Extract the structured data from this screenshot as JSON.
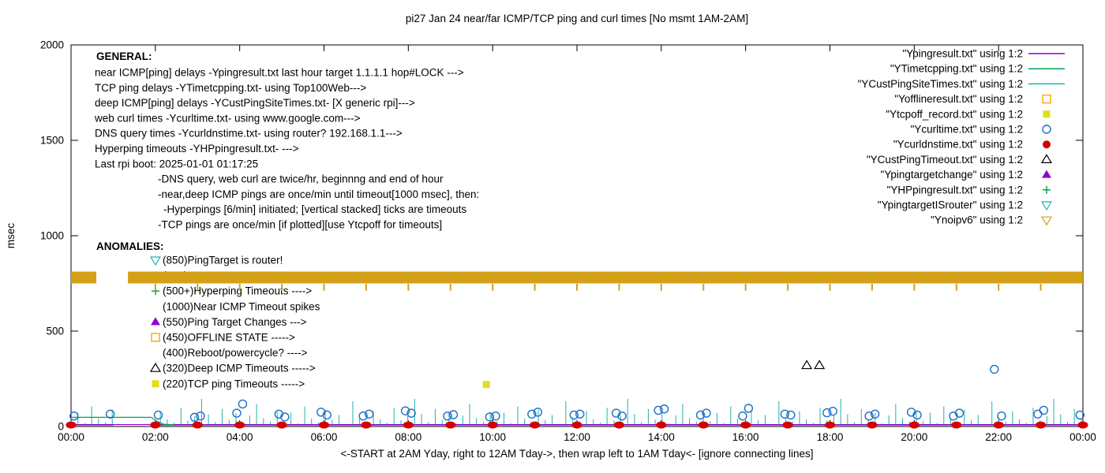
{
  "chart_data": {
    "type": "line",
    "title": "pi27 Jan 24  near/far ICMP/TCP ping and curl times [No msmt 1AM-2AM]",
    "ylabel": "msec",
    "xlabel": "<-START at 2AM Yday, right to 12AM Tday->, then wrap left to 1AM Tday<- [ignore connecting lines]",
    "x_ticks": [
      "00:00",
      "02:00",
      "04:00",
      "06:00",
      "08:00",
      "10:00",
      "12:00",
      "14:00",
      "16:00",
      "18:00",
      "20:00",
      "22:00",
      "00:00"
    ],
    "y_ticks": [
      0,
      500,
      1000,
      1500,
      2000
    ],
    "ylim": [
      0,
      2000
    ],
    "xlim_hours": [
      0,
      24
    ],
    "legend_position": "top-right",
    "grid": false,
    "legend": [
      {
        "label": "\"Ypingresult.txt\" using 1:2",
        "marker": "line",
        "color": "#9400D3"
      },
      {
        "label": "\"YTimetcpping.txt\" using 1:2",
        "marker": "line",
        "color": "#00A651"
      },
      {
        "label": "\"YCustPingSiteTimes.txt\" using 1:2",
        "marker": "line",
        "color": "#20B2AA"
      },
      {
        "label": "\"Yofflineresult.txt\" using 1:2",
        "marker": "square-open",
        "color": "#FFA500"
      },
      {
        "label": "\"Ytcpoff_record.txt\" using 1:2",
        "marker": "square-filled",
        "color": "#DFDF20"
      },
      {
        "label": "\"Ycurltime.txt\" using 1:2",
        "marker": "circle-open",
        "color": "#1E6FC8"
      },
      {
        "label": "\"Ycurldnstime.txt\" using 1:2",
        "marker": "circle-filled",
        "color": "#D40000"
      },
      {
        "label": "\"YCustPingTimeout.txt\" using 1:2",
        "marker": "triangle-open",
        "color": "#000000"
      },
      {
        "label": "\"Ypingtargetchange\" using 1:2",
        "marker": "triangle-filled",
        "color": "#9400D3"
      },
      {
        "label": "\"YHPpingresult.txt\" using 1:2",
        "marker": "plus",
        "color": "#00A651"
      },
      {
        "label": "\"YpingtargetISrouter\" using 1:2",
        "marker": "triangle-down-open",
        "color": "#20B2AA"
      },
      {
        "label": "\"Ynoipv6\" using 1:2",
        "marker": "triangle-down-open",
        "color": "#D4A017"
      }
    ],
    "general": {
      "header": "GENERAL:",
      "lines": [
        {
          "text": "near ICMP[ping] delays -Ypingresult.txt last hour target 1.1.1.1 hop#LOCK --->",
          "indent": 0
        },
        {
          "text": "TCP ping delays -YTimetcpping.txt- using Top100Web--->",
          "indent": 0
        },
        {
          "text": "deep ICMP[ping] delays -YCustPingSiteTimes.txt- [X generic rpi]--->",
          "indent": 0
        },
        {
          "text": "web curl times -Ycurltime.txt- using www.google.com--->",
          "indent": 0
        },
        {
          "text": "DNS query times -Ycurldnstime.txt- using router? 192.168.1.1--->",
          "indent": 0
        },
        {
          "text": "Hyperping timeouts -YHPpingresult.txt- --->",
          "indent": 0
        },
        {
          "text": "Last rpi boot: 2025-01-01 01:17:25",
          "indent": 0
        },
        {
          "text": "-DNS query, web curl are twice/hr, beginnng and end of hour",
          "indent": 1
        },
        {
          "text": "-near,deep ICMP pings are once/min until timeout[1000 msec], then:",
          "indent": 1
        },
        {
          "text": "-Hyperpings [6/min] initiated; [vertical stacked] ticks are timeouts",
          "indent": 2
        },
        {
          "text": "-TCP pings are once/min [if plotted][use Ytcpoff for timeouts]",
          "indent": 1
        }
      ]
    },
    "anomalies": {
      "header": "ANOMALIES:",
      "items": [
        {
          "text": "(850)PingTarget is router!",
          "marker": "triangle-down-open",
          "color": "#20B2AA"
        },
        {
          "text": "(725)",
          "marker": "triangle-down-open",
          "color": "#D4A017"
        },
        {
          "text": "(500+)Hyperping Timeouts ---->",
          "marker": "plus",
          "color": "#00A651"
        },
        {
          "text": "(1000)Near ICMP Timeout spikes",
          "marker": "",
          "color": ""
        },
        {
          "text": "(550)Ping Target Changes --->",
          "marker": "triangle-filled",
          "color": "#9400D3"
        },
        {
          "text": "(450)OFFLINE STATE ----->",
          "marker": "square-open",
          "color": "#FFA500"
        },
        {
          "text": "(400)Reboot/powercycle? ---->",
          "marker": "",
          "color": ""
        },
        {
          "text": "(320)Deep ICMP Timeouts ----->",
          "marker": "triangle-open",
          "color": "#000000"
        },
        {
          "text": "(220)TCP ping Timeouts ----->",
          "marker": "square-filled",
          "color": "#DFDF20"
        }
      ]
    },
    "series": {
      "ping_near": {
        "name": "Ypingresult.txt",
        "type": "line",
        "color": "#9400D3",
        "points": [
          [
            0,
            10
          ],
          [
            24,
            10
          ]
        ]
      },
      "tcp_ping": {
        "name": "YTimetcpping.txt",
        "type": "line",
        "color": "#00A651",
        "points": [
          [
            0,
            48
          ],
          [
            1.9,
            48
          ],
          [
            2.05,
            26
          ],
          [
            2.2,
            12
          ],
          [
            2.45,
            9
          ]
        ]
      },
      "deep_ping": {
        "name": "YCustPingSiteTimes.txt",
        "type": "spikes",
        "color": "#20B2AA",
        "baseline": 6,
        "step_hours": 0.163,
        "gap_hours": [
          1,
          2
        ],
        "heights_pattern": [
          28,
          72,
          18,
          105,
          42,
          22,
          88,
          34,
          60,
          14,
          132,
          48,
          26,
          80,
          38,
          20,
          98,
          32,
          55,
          145,
          64,
          24,
          92,
          36,
          70,
          16,
          58,
          118,
          44,
          26,
          76
        ]
      },
      "offline": {
        "name": "Yofflineresult.txt",
        "type": "scatter",
        "marker": "square-open",
        "color": "#FFA500",
        "points": []
      },
      "tcpoff": {
        "name": "Ytcpoff_record.txt",
        "type": "scatter",
        "marker": "square-filled",
        "color": "#DFDF20",
        "points": [
          [
            9.85,
            220
          ]
        ]
      },
      "curl": {
        "name": "Ycurltime.txt",
        "type": "scatter",
        "marker": "circle-open",
        "color": "#1E6FC8",
        "points": [
          [
            0.07,
            55
          ],
          [
            0.93,
            65
          ],
          [
            2.07,
            60
          ],
          [
            2.93,
            48
          ],
          [
            3.07,
            55
          ],
          [
            3.93,
            70
          ],
          [
            4.07,
            118
          ],
          [
            4.93,
            65
          ],
          [
            5.07,
            50
          ],
          [
            5.93,
            75
          ],
          [
            6.07,
            60
          ],
          [
            6.93,
            55
          ],
          [
            7.07,
            65
          ],
          [
            7.93,
            82
          ],
          [
            8.07,
            70
          ],
          [
            8.93,
            55
          ],
          [
            9.07,
            62
          ],
          [
            9.93,
            50
          ],
          [
            10.07,
            55
          ],
          [
            10.93,
            65
          ],
          [
            11.07,
            75
          ],
          [
            11.93,
            60
          ],
          [
            12.07,
            65
          ],
          [
            12.93,
            70
          ],
          [
            13.07,
            55
          ],
          [
            13.93,
            85
          ],
          [
            14.07,
            92
          ],
          [
            14.93,
            60
          ],
          [
            15.07,
            70
          ],
          [
            15.93,
            55
          ],
          [
            16.07,
            95
          ],
          [
            16.93,
            65
          ],
          [
            17.07,
            60
          ],
          [
            17.93,
            72
          ],
          [
            18.07,
            80
          ],
          [
            18.93,
            55
          ],
          [
            19.07,
            65
          ],
          [
            19.93,
            75
          ],
          [
            20.07,
            60
          ],
          [
            20.93,
            55
          ],
          [
            21.07,
            70
          ],
          [
            21.9,
            300
          ],
          [
            22.07,
            55
          ],
          [
            22.93,
            65
          ],
          [
            23.07,
            85
          ],
          [
            23.93,
            60
          ]
        ]
      },
      "dns": {
        "name": "Ycurldnstime.txt",
        "type": "scatter",
        "marker": "ellipse-filled",
        "color": "#D40000",
        "points": [
          [
            0,
            8
          ],
          [
            2,
            8
          ],
          [
            3,
            8
          ],
          [
            4,
            8
          ],
          [
            5,
            8
          ],
          [
            6,
            8
          ],
          [
            7,
            8
          ],
          [
            8,
            8
          ],
          [
            9,
            8
          ],
          [
            10,
            8
          ],
          [
            11,
            8
          ],
          [
            12,
            8
          ],
          [
            13,
            8
          ],
          [
            14,
            8
          ],
          [
            15,
            8
          ],
          [
            16,
            8
          ],
          [
            17,
            8
          ],
          [
            18,
            8
          ],
          [
            19,
            8
          ],
          [
            20,
            8
          ],
          [
            21,
            8
          ],
          [
            22,
            8
          ],
          [
            23,
            8
          ],
          [
            24,
            8
          ]
        ]
      },
      "deep_timeout": {
        "name": "YCustPingTimeout.txt",
        "type": "scatter",
        "marker": "triangle-open",
        "color": "#000000",
        "points": [
          [
            17.45,
            320
          ],
          [
            17.75,
            320
          ]
        ]
      },
      "target_change": {
        "name": "Ypingtargetchange",
        "type": "scatter",
        "marker": "triangle-filled",
        "color": "#9400D3",
        "points": []
      },
      "hyperping": {
        "name": "YHPpingresult.txt",
        "type": "scatter",
        "marker": "plus",
        "color": "#00A651",
        "points": []
      },
      "target_is_router": {
        "name": "YpingtargetISrouter",
        "type": "scatter",
        "marker": "triangle-down-open",
        "color": "#20B2AA",
        "points": []
      },
      "noipv6_band": {
        "name": "Ynoipv6",
        "type": "band",
        "color": "#D4A017",
        "y_range": [
          750,
          812
        ],
        "segments": [
          [
            0,
            0.6
          ],
          [
            1.35,
            24
          ]
        ],
        "tick_hours": [
          2,
          3,
          4,
          5,
          6,
          7,
          8,
          9,
          10,
          11,
          12,
          13,
          14,
          15,
          16,
          17,
          18,
          19,
          20,
          21,
          22,
          23
        ],
        "tick_y": [
          748,
          712
        ]
      }
    }
  }
}
